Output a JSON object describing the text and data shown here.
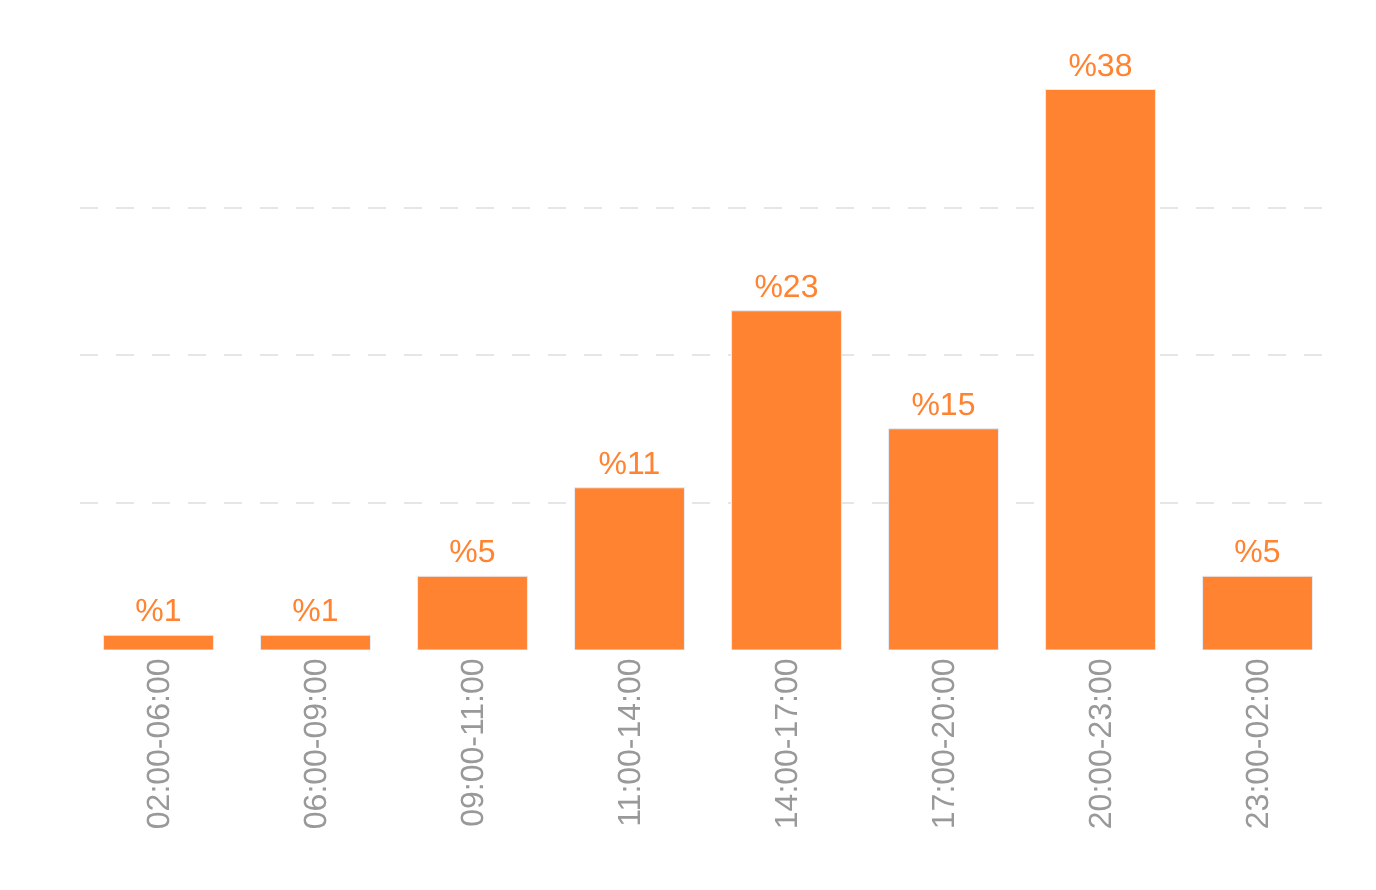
{
  "chart_data": {
    "type": "bar",
    "categories": [
      "02:00-06:00",
      "06:00-09:00",
      "09:00-11:00",
      "11:00-14:00",
      "14:00-17:00",
      "17:00-20:00",
      "20:00-23:00",
      "23:00-02:00"
    ],
    "values": [
      1,
      1,
      5,
      11,
      23,
      15,
      38,
      5
    ],
    "value_labels": [
      "%1",
      "%1",
      "%5",
      "%11",
      "%23",
      "%15",
      "%38",
      "%5"
    ],
    "color": "#ff8330",
    "yticks": [
      {
        "value": 10,
        "label": null
      },
      {
        "value": 20,
        "label": null
      },
      {
        "value": 30,
        "label": null
      }
    ],
    "grid": "y",
    "tick_labels": "x"
  }
}
